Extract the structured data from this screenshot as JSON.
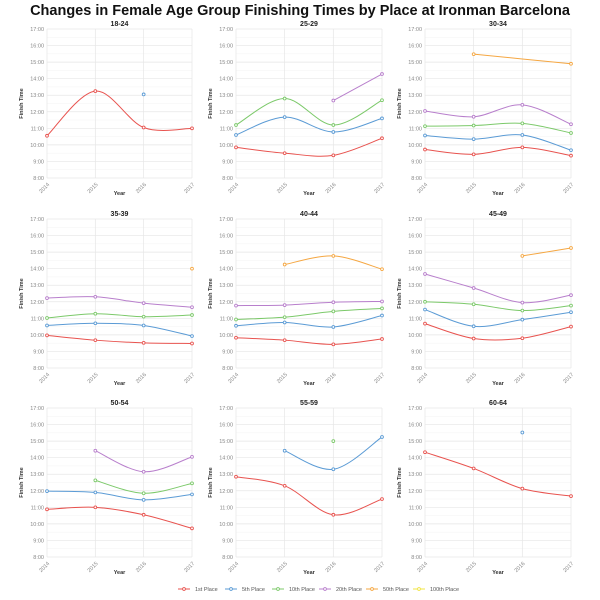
{
  "chart_data": {
    "type": "line",
    "title": "Changes in Female Age Group Finishing Times by Place at Ironman Barcelona",
    "xlabel": "Year",
    "ylabel": "Finish Time",
    "x": [
      2014,
      2015,
      2016,
      2017
    ],
    "x_tick_labels": [
      "2014",
      "2015",
      "2016",
      "2017"
    ],
    "y_unit": "hours",
    "ylim": [
      8,
      17
    ],
    "y_tick_labels": [
      "8:00",
      "9:00",
      "10:00",
      "11:00",
      "12:00",
      "13:00",
      "14:00",
      "15:00",
      "16:00",
      "17:00"
    ],
    "grid": true,
    "legend_placement": "bottom",
    "series_names": [
      "1st Place",
      "5th Place",
      "10th Place",
      "20th Place",
      "50th Place",
      "100th Place"
    ],
    "colors": [
      "#e8534f",
      "#5b9bd5",
      "#7cc96a",
      "#b87fcc",
      "#f5a742",
      "#f0e442"
    ],
    "panels": [
      {
        "title": "18-24",
        "series": [
          [
            10.55,
            13.25,
            11.05,
            11.0
          ],
          [
            null,
            null,
            13.05,
            null
          ],
          null,
          null,
          null,
          null
        ]
      },
      {
        "title": "25-29",
        "series": [
          [
            9.85,
            9.5,
            9.37,
            10.4
          ],
          [
            10.6,
            11.68,
            10.78,
            11.6
          ],
          [
            11.2,
            12.8,
            11.2,
            12.7
          ],
          [
            null,
            null,
            12.68,
            14.28
          ],
          null,
          null
        ]
      },
      {
        "title": "30-34",
        "series": [
          [
            9.72,
            9.43,
            9.85,
            9.35
          ],
          [
            10.57,
            10.35,
            10.6,
            9.68
          ],
          [
            11.13,
            11.17,
            11.3,
            10.72
          ],
          [
            12.05,
            11.7,
            12.42,
            11.25
          ],
          [
            null,
            15.48,
            null,
            14.9
          ],
          null
        ]
      },
      {
        "title": "35-39",
        "series": [
          [
            9.97,
            9.68,
            9.52,
            9.48
          ],
          [
            10.57,
            10.7,
            10.57,
            9.93
          ],
          [
            11.02,
            11.28,
            11.1,
            11.2
          ],
          [
            12.22,
            12.3,
            11.92,
            11.67
          ],
          [
            null,
            null,
            null,
            14.0
          ],
          null
        ]
      },
      {
        "title": "40-44",
        "series": [
          [
            9.83,
            9.68,
            9.43,
            9.75
          ],
          [
            10.55,
            10.75,
            10.48,
            11.17
          ],
          [
            10.93,
            11.07,
            11.42,
            11.6
          ],
          [
            11.77,
            11.8,
            11.97,
            12.02
          ],
          [
            null,
            14.25,
            14.77,
            13.97
          ],
          null
        ]
      },
      {
        "title": "45-49",
        "series": [
          [
            10.68,
            9.78,
            9.8,
            10.5
          ],
          [
            11.53,
            10.52,
            10.92,
            11.37
          ],
          [
            12.0,
            11.85,
            11.47,
            11.77
          ],
          [
            13.68,
            12.83,
            11.95,
            12.4
          ],
          [
            null,
            null,
            14.77,
            15.25
          ],
          null
        ]
      },
      {
        "title": "50-54",
        "series": [
          [
            10.88,
            11.0,
            10.55,
            9.73
          ],
          [
            11.98,
            11.9,
            11.45,
            11.78
          ],
          [
            null,
            12.63,
            11.85,
            12.45
          ],
          [
            null,
            14.42,
            13.15,
            14.05
          ],
          null,
          null
        ]
      },
      {
        "title": "55-59",
        "series": [
          [
            12.85,
            12.3,
            10.55,
            11.5
          ],
          [
            null,
            14.42,
            13.3,
            15.25
          ],
          [
            null,
            null,
            15.0,
            null
          ],
          null,
          null,
          null
        ]
      },
      {
        "title": "60-64",
        "series": [
          [
            14.33,
            13.35,
            12.13,
            11.68
          ],
          [
            null,
            null,
            15.52,
            null
          ],
          null,
          null,
          null,
          null
        ]
      }
    ]
  }
}
